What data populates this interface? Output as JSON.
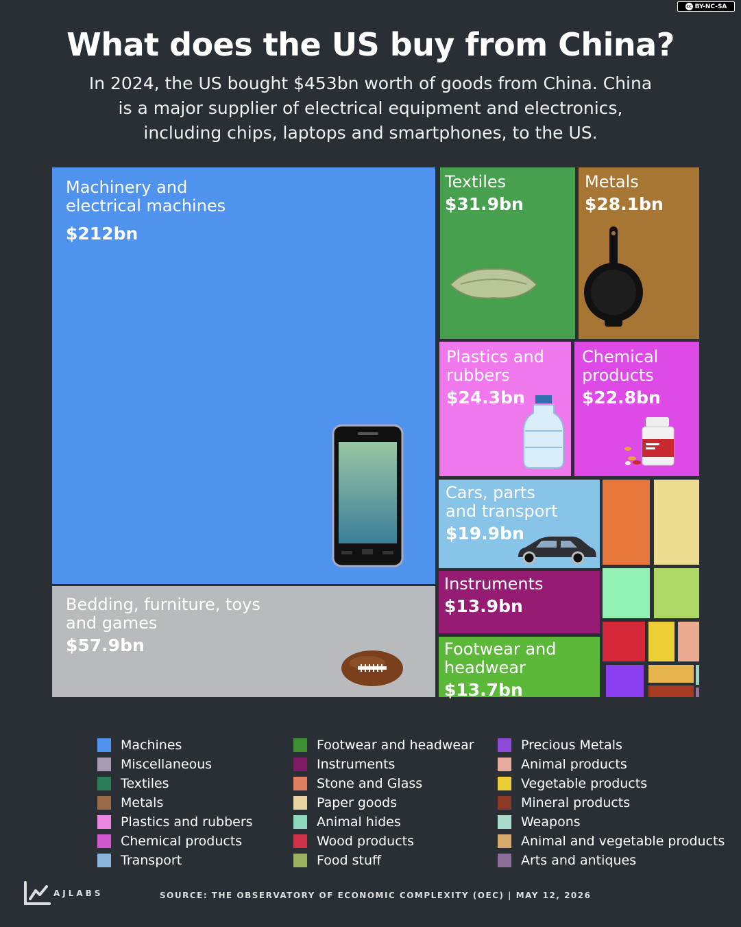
{
  "license": "BY-NC-SA",
  "license_icon": "cc-icon",
  "title": "What does the US buy from China?",
  "subtitle": "In 2024, the US bought $453bn worth of goods from China. China is a major supplier of electrical equipment and electronics, including chips, laptops and smartphones, to the US.",
  "chart_data": {
    "type": "treemap",
    "title": "What does the US buy from China?",
    "subtitle": "In 2024, the US bought $453bn worth of goods from China. China is a major supplier of electrical equipment and electronics, including chips, laptops and smartphones, to the US.",
    "unit": "USD",
    "labeled_cells": [
      {
        "name": "Machinery and electrical machines",
        "value_label": "$212bn",
        "value": 212,
        "color": "#4f93ef",
        "icon": "smartphone-icon"
      },
      {
        "name": "Bedding, furniture, toys and games",
        "value_label": "$57.9bn",
        "value": 57.9,
        "color": "#b9babd",
        "icon": "football-icon"
      },
      {
        "name": "Textiles",
        "value_label": "$31.9bn",
        "value": 31.9,
        "color": "#46a04e",
        "icon": "pillow-icon"
      },
      {
        "name": "Metals",
        "value_label": "$28.1bn",
        "value": 28.1,
        "color": "#a87634",
        "icon": "frying-pan-icon"
      },
      {
        "name": "Plastics and rubbers",
        "value_label": "$24.3bn",
        "value": 24.3,
        "color": "#ee78ec",
        "icon": "water-bottle-icon"
      },
      {
        "name": "Chemical products",
        "value_label": "$22.8bn",
        "value": 22.8,
        "color": "#dd4ae6",
        "icon": "medicine-bottle-icon"
      },
      {
        "name": "Cars, parts and transport",
        "value_label": "$19.9bn",
        "value": 19.9,
        "color": "#88c3e8",
        "icon": "car-icon"
      },
      {
        "name": "Instruments",
        "value_label": "$13.9bn",
        "value": 13.9,
        "color": "#951c72",
        "icon": ""
      },
      {
        "name": "Footwear and headwear",
        "value_label": "$13.7bn",
        "value": 13.7,
        "color": "#5cb838",
        "icon": ""
      }
    ],
    "unlabeled_cell_colors": [
      "#e6763a",
      "#ecdd91",
      "#92f0b4",
      "#aed865",
      "#d5283a",
      "#edcf38",
      "#eaab91",
      "#8a3ef0",
      "#e6b54c",
      "#a63b22",
      "#9ad7c8",
      "#9a6f9a"
    ],
    "legend": [
      {
        "label": "Machines",
        "color": "#4f93ef"
      },
      {
        "label": "Miscellaneous",
        "color": "#a69bb0"
      },
      {
        "label": "Textiles",
        "color": "#2a7e58"
      },
      {
        "label": "Metals",
        "color": "#9a6a48"
      },
      {
        "label": "Plastics and rubbers",
        "color": "#ea86e2"
      },
      {
        "label": "Chemical products",
        "color": "#d158cc"
      },
      {
        "label": "Transport",
        "color": "#8ab6dc"
      },
      {
        "label": "Footwear and headwear",
        "color": "#3d9133"
      },
      {
        "label": "Instruments",
        "color": "#7f1a66"
      },
      {
        "label": "Stone and Glass",
        "color": "#e08060"
      },
      {
        "label": "Paper goods",
        "color": "#e8d6a2"
      },
      {
        "label": "Animal hides",
        "color": "#8cd8bd"
      },
      {
        "label": "Wood products",
        "color": "#cf3149"
      },
      {
        "label": "Food stuff",
        "color": "#9bb360"
      },
      {
        "label": "Precious Metals",
        "color": "#8e4ad6"
      },
      {
        "label": "Animal products",
        "color": "#e8aba0"
      },
      {
        "label": "Vegetable products",
        "color": "#ecce38"
      },
      {
        "label": "Mineral products",
        "color": "#8a3a26"
      },
      {
        "label": "Weapons",
        "color": "#a9dccd"
      },
      {
        "label": "Animal and vegetable products",
        "color": "#d6a96a"
      },
      {
        "label": "Arts and antiques",
        "color": "#8c6f98"
      }
    ],
    "legend_placement": "bottom"
  },
  "footer": {
    "brand": "AJLABS",
    "brand_icon": "line-chart-icon",
    "source": "SOURCE:  THE OBSERVATORY OF ECONOMIC COMPLEXITY (OEC)  |  MAY 12, 2026"
  }
}
